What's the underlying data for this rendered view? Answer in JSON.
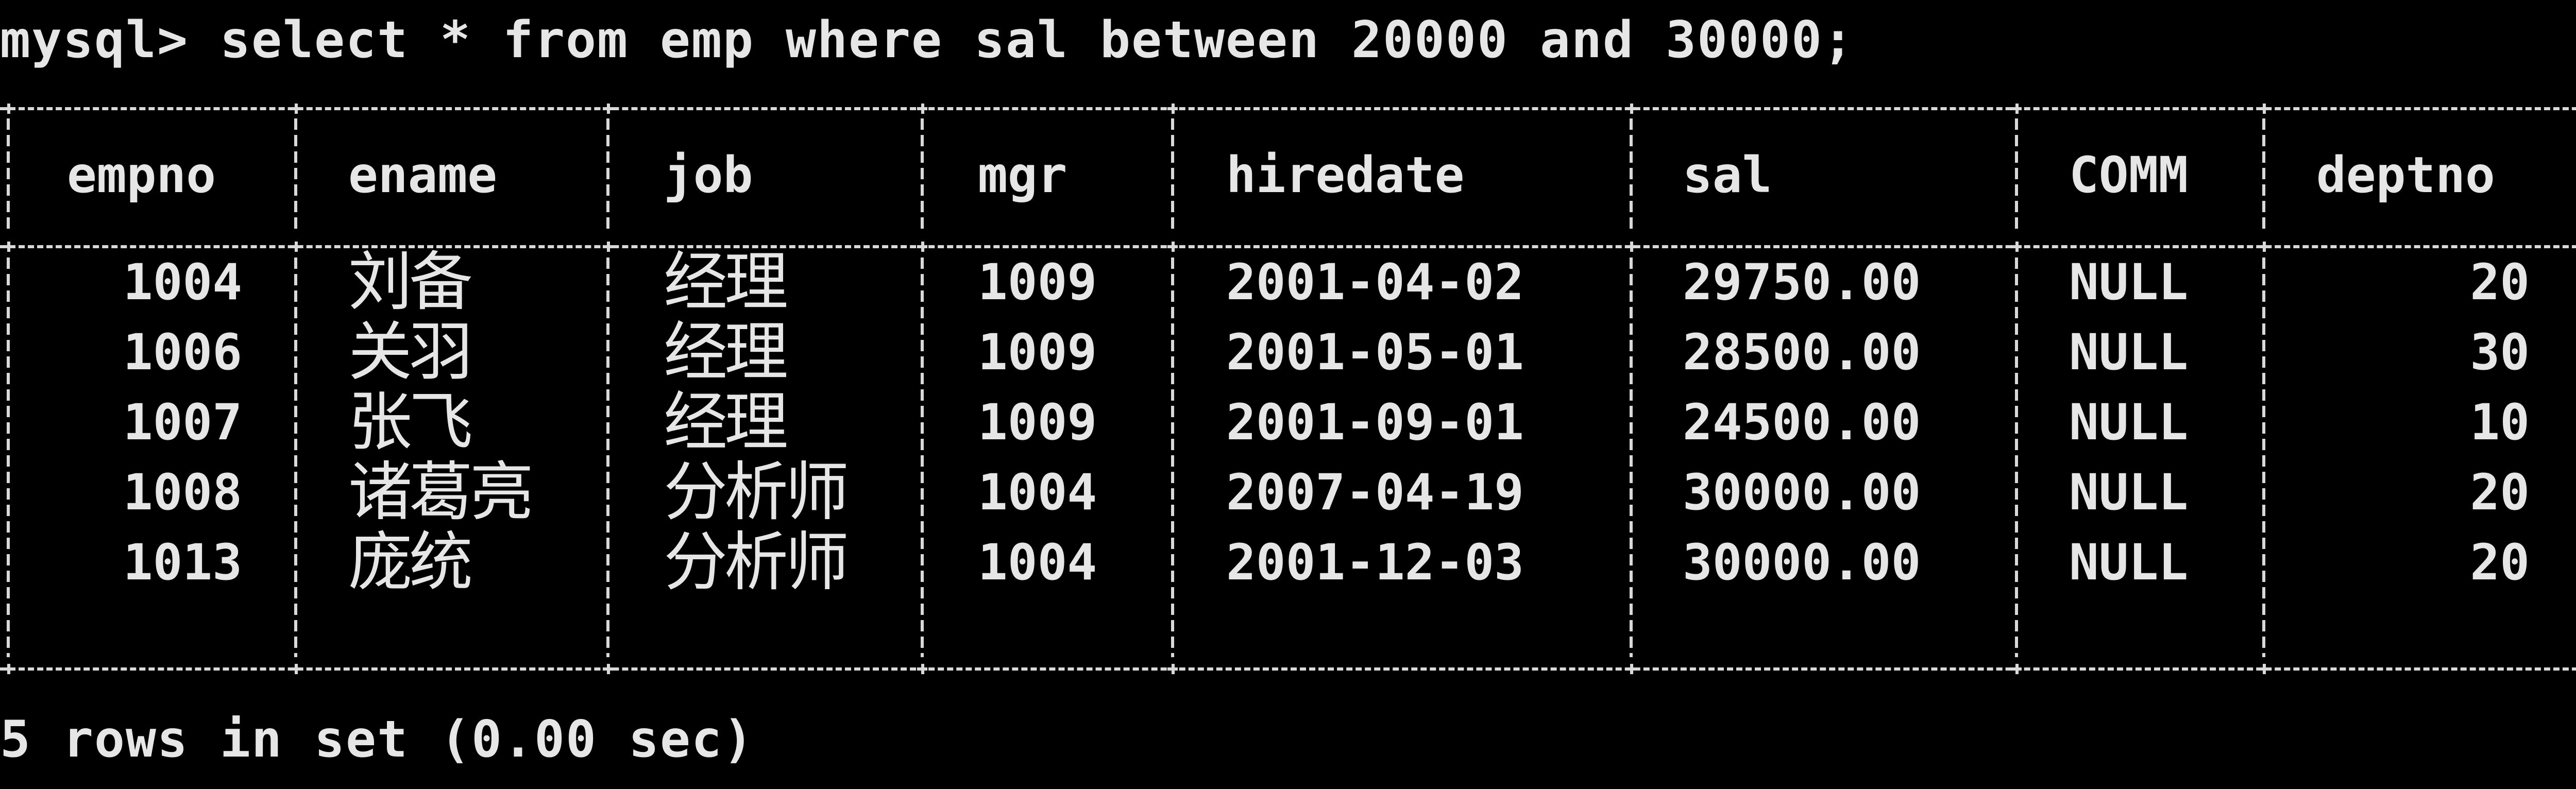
{
  "terminal": {
    "command_line": "mysql> select * from emp where sal between 20000 and 30000;",
    "summary_line": "5 rows in set (0.00 sec)"
  },
  "table": {
    "columns": [
      "empno",
      "ename",
      "job",
      "mgr",
      "hiredate",
      "sal",
      "COMM",
      "deptno"
    ],
    "rows": [
      [
        "1004",
        "刘备",
        "经理",
        "1009",
        "2001-04-02",
        "29750.00",
        "NULL",
        "20"
      ],
      [
        "1006",
        "关羽",
        "经理",
        "1009",
        "2001-05-01",
        "28500.00",
        "NULL",
        "30"
      ],
      [
        "1007",
        "张飞",
        "经理",
        "1009",
        "2001-09-01",
        "24500.00",
        "NULL",
        "10"
      ],
      [
        "1008",
        "诸葛亮",
        "分析师",
        "1004",
        "2007-04-19",
        "30000.00",
        "NULL",
        "20"
      ],
      [
        "1013",
        "庞统",
        "分析师",
        "1004",
        "2001-12-03",
        "30000.00",
        "NULL",
        "20"
      ]
    ]
  },
  "colors": {
    "background": "#000000",
    "text": "#e6e6e6"
  }
}
